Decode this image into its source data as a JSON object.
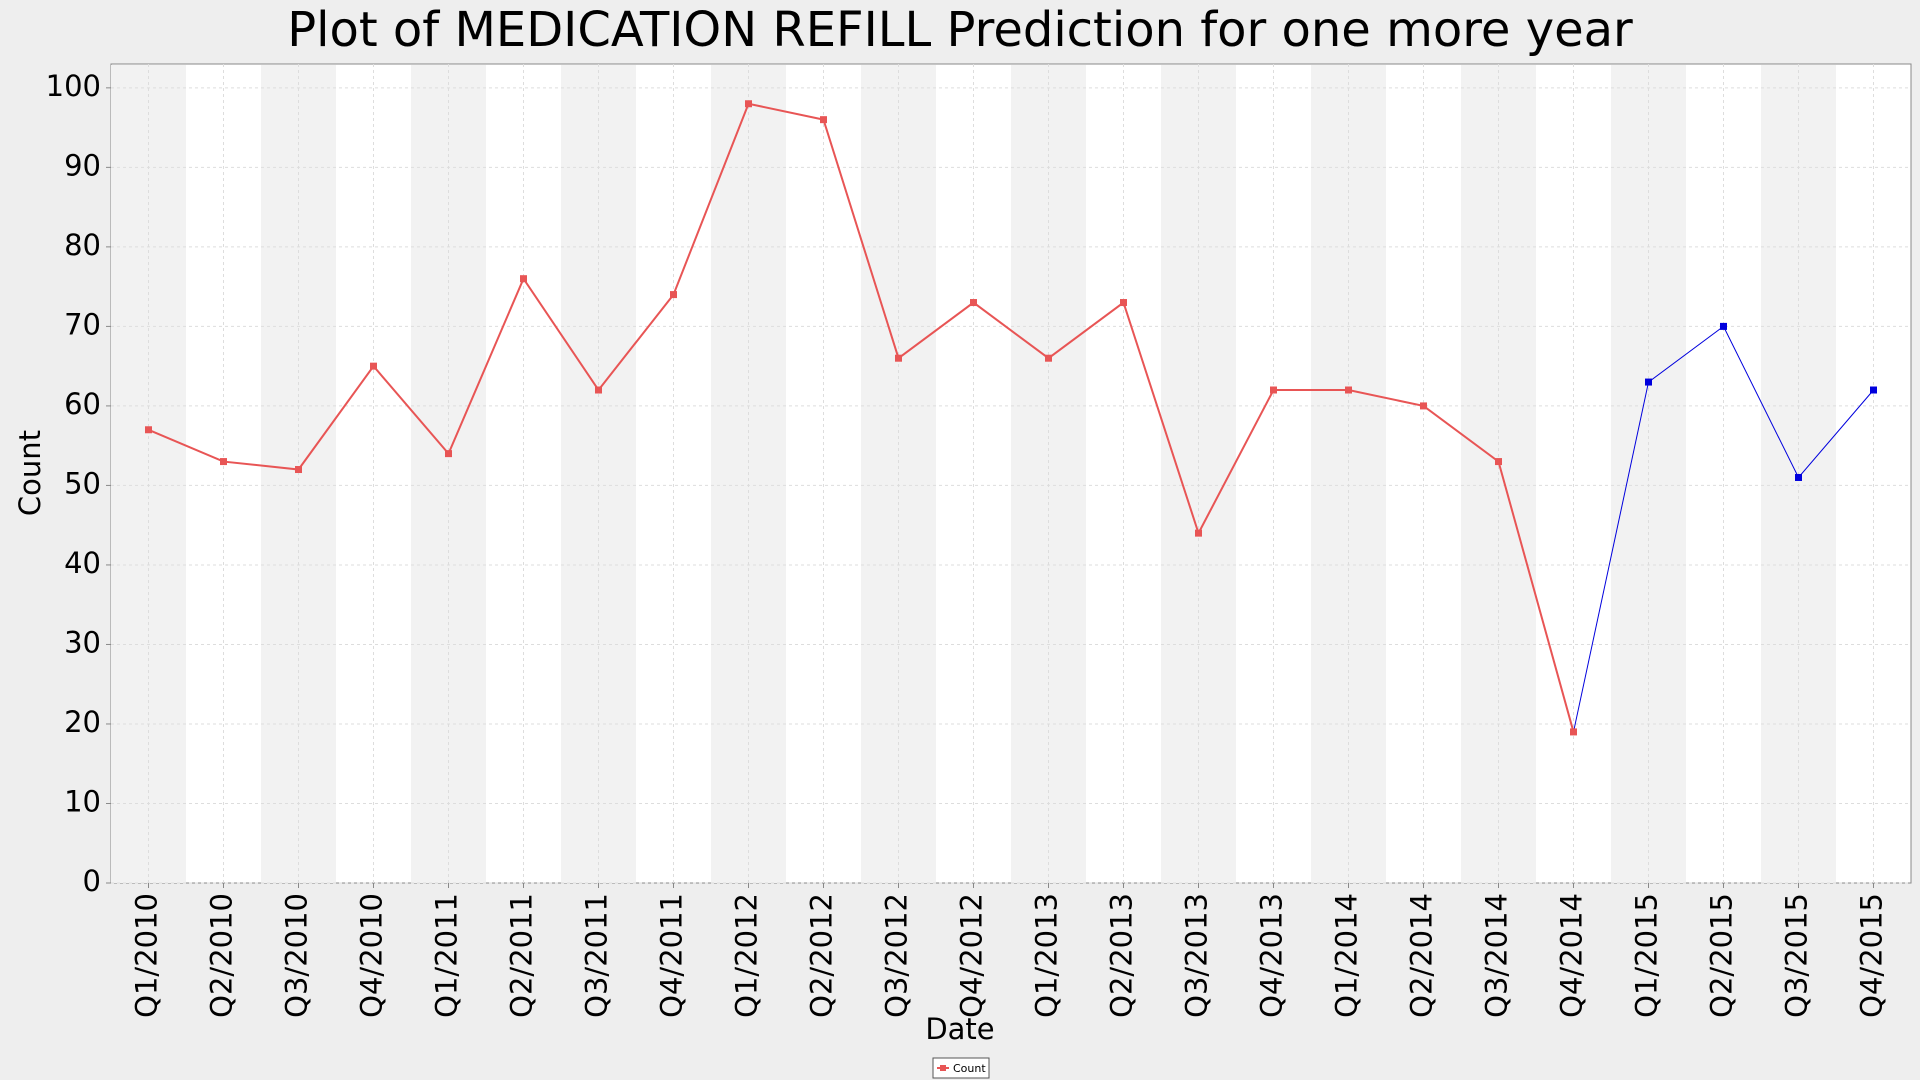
{
  "chart_data": {
    "type": "line",
    "title": "Plot of MEDICATION  REFILL Prediction for one more year",
    "x_label": "Date",
    "y_label": "Count",
    "categories": [
      "Q1/2010",
      "Q2/2010",
      "Q3/2010",
      "Q4/2010",
      "Q1/2011",
      "Q2/2011",
      "Q3/2011",
      "Q4/2011",
      "Q1/2012",
      "Q2/2012",
      "Q3/2012",
      "Q4/2012",
      "Q1/2013",
      "Q2/2013",
      "Q3/2013",
      "Q4/2013",
      "Q1/2014",
      "Q2/2014",
      "Q3/2014",
      "Q4/2014",
      "Q1/2015",
      "Q2/2015",
      "Q3/2015",
      "Q4/2015"
    ],
    "series": [
      {
        "name": "Count",
        "color": "#e85555",
        "values": [
          57,
          53,
          52,
          65,
          54,
          76,
          62,
          74,
          98,
          96,
          66,
          73,
          66,
          73,
          44,
          62,
          62,
          60,
          53,
          19,
          null,
          null,
          null,
          null
        ]
      },
      {
        "color": "#0000dd",
        "values": [
          null,
          null,
          null,
          null,
          null,
          null,
          null,
          null,
          null,
          null,
          null,
          null,
          null,
          null,
          null,
          null,
          null,
          null,
          null,
          null,
          63,
          70,
          51,
          62
        ]
      }
    ],
    "ylim": [
      0,
      103
    ],
    "yticks": [
      0,
      10,
      20,
      30,
      40,
      50,
      60,
      70,
      80,
      90,
      100
    ],
    "grid": true,
    "legend": "bottom"
  }
}
